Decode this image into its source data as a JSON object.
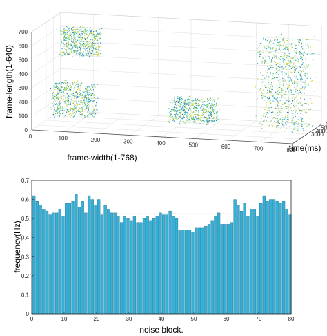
{
  "chart_data": [
    {
      "type": "scatter",
      "projection": "3d",
      "xlabel": "frame-width(1-768)",
      "ylabel": "frame-length(1-640)",
      "zlabel": "time(ms)",
      "xlim": [
        0,
        800
      ],
      "ylim": [
        0,
        700
      ],
      "zlim": [
        0,
        6000
      ],
      "xticks": [
        "0",
        "100",
        "200",
        "300",
        "400",
        "500",
        "600",
        "700",
        "800"
      ],
      "yticks": [
        "0",
        "100",
        "200",
        "300",
        "400",
        "500",
        "600",
        "700"
      ],
      "zticks": [
        "3000",
        "4000",
        "5000",
        "6000"
      ],
      "grid": true,
      "colormap": [
        "#2c7fb8",
        "#1fa8c4",
        "#3dbd9a",
        "#8fcf4a",
        "#d6d420"
      ],
      "clusters": [
        {
          "x": [
            30,
            150
          ],
          "y": [
            450,
            650
          ],
          "z": [
            3500,
            4500
          ]
        },
        {
          "x": [
            30,
            160
          ],
          "y": [
            60,
            300
          ],
          "z": [
            1500,
            3000
          ]
        },
        {
          "x": [
            380,
            520
          ],
          "y": [
            40,
            210
          ],
          "z": [
            2500,
            3800
          ]
        },
        {
          "x": [
            640,
            780
          ],
          "y": [
            0,
            640
          ],
          "z": [
            3000,
            6000
          ]
        }
      ]
    },
    {
      "type": "bar",
      "xlabel": "noise block.",
      "ylabel": "frequency(Hz)",
      "xlim": [
        0,
        80
      ],
      "ylim": [
        0,
        0.7
      ],
      "xticks": [
        "0",
        "10",
        "20",
        "30",
        "40",
        "50",
        "60",
        "70",
        "80"
      ],
      "yticks": [
        "0",
        "0.1",
        "0.2",
        "0.3",
        "0.4",
        "0.5",
        "0.6",
        "0.7"
      ],
      "bar_color": "#36b0d6",
      "reference_line": 0.525,
      "x": [
        1,
        2,
        3,
        4,
        5,
        6,
        7,
        8,
        9,
        10,
        11,
        12,
        13,
        14,
        15,
        16,
        17,
        18,
        19,
        20,
        21,
        22,
        23,
        24,
        25,
        26,
        27,
        28,
        29,
        30,
        31,
        32,
        33,
        34,
        35,
        36,
        37,
        38,
        39,
        40,
        41,
        42,
        43,
        44,
        45,
        46,
        47,
        48,
        49,
        50,
        51,
        52,
        53,
        54,
        55,
        56,
        57,
        58,
        59,
        60,
        61,
        62,
        63,
        64,
        65,
        66,
        67,
        68,
        69,
        70,
        71,
        72,
        73,
        74,
        75,
        76,
        77,
        78,
        79,
        80
      ],
      "values": [
        0.62,
        0.59,
        0.57,
        0.55,
        0.54,
        0.52,
        0.53,
        0.53,
        0.55,
        0.51,
        0.58,
        0.58,
        0.59,
        0.63,
        0.56,
        0.59,
        0.53,
        0.62,
        0.6,
        0.57,
        0.6,
        0.52,
        0.57,
        0.55,
        0.53,
        0.53,
        0.51,
        0.48,
        0.51,
        0.5,
        0.49,
        0.51,
        0.48,
        0.48,
        0.5,
        0.51,
        0.49,
        0.5,
        0.51,
        0.53,
        0.52,
        0.52,
        0.54,
        0.51,
        0.5,
        0.44,
        0.44,
        0.44,
        0.44,
        0.43,
        0.45,
        0.45,
        0.45,
        0.46,
        0.47,
        0.49,
        0.51,
        0.53,
        0.47,
        0.47,
        0.47,
        0.48,
        0.6,
        0.57,
        0.54,
        0.58,
        0.51,
        0.55,
        0.55,
        0.51,
        0.58,
        0.62,
        0.59,
        0.6,
        0.6,
        0.59,
        0.58,
        0.59,
        0.55,
        0.52
      ]
    }
  ]
}
